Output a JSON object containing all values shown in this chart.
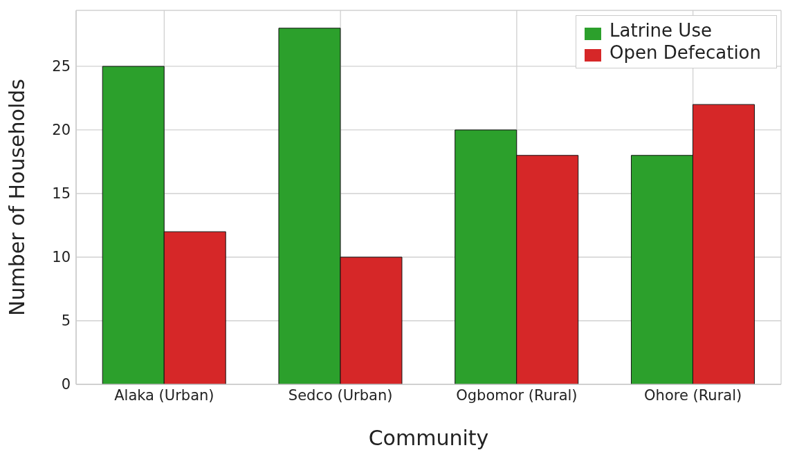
{
  "chart_data": {
    "type": "bar",
    "xlabel": "Community",
    "ylabel": "Number of Households",
    "categories": [
      "Alaka (Urban)",
      "Sedco (Urban)",
      "Ogbomor (Rural)",
      "Ohore (Rural)"
    ],
    "series": [
      {
        "name": "Latrine Use",
        "color": "#2ca02c",
        "values": [
          25,
          28,
          20,
          18
        ]
      },
      {
        "name": "Open Defecation",
        "color": "#d62728",
        "values": [
          12,
          10,
          18,
          22
        ]
      }
    ],
    "ylim": [
      0,
      29.4
    ],
    "yticks": [
      0,
      5,
      10,
      15,
      20,
      25
    ],
    "grid": true,
    "legend": "top right"
  }
}
